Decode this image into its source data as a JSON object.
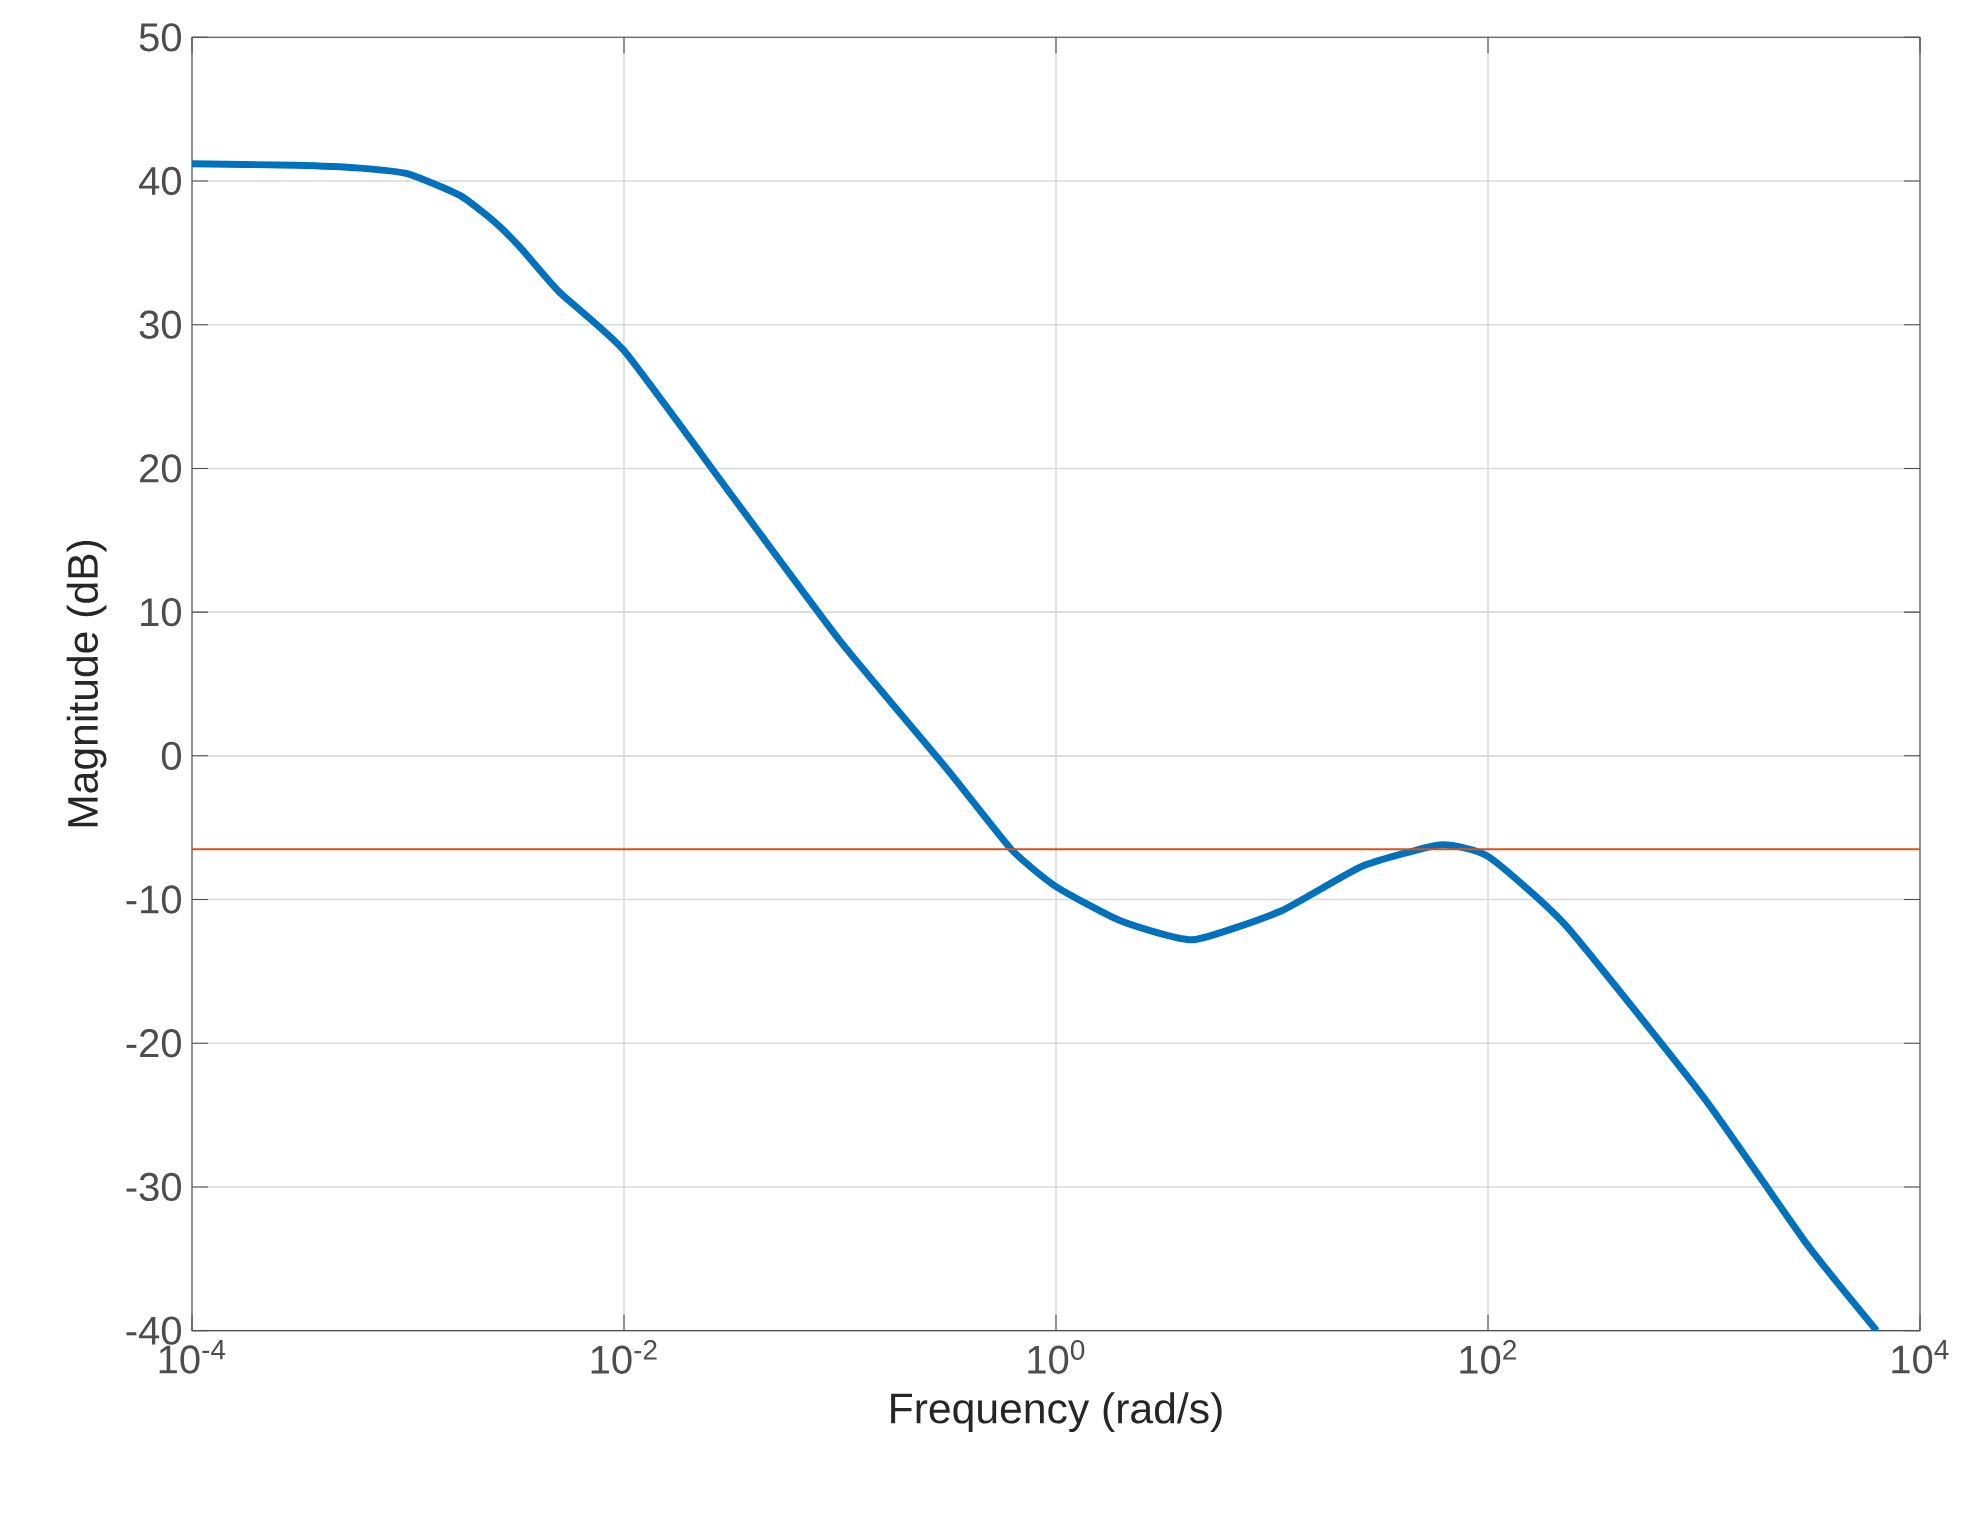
{
  "chart_data": {
    "type": "line",
    "xlabel": "Frequency (rad/s)",
    "ylabel": "Magnitude (dB)",
    "log": "x",
    "grid": true,
    "line_style": "solid",
    "marker": "none",
    "xlim": [
      0.0001,
      10000
    ],
    "ylim": [
      -40,
      50
    ],
    "xticks": [
      {
        "value": 0.0001,
        "label": "10$^{-4}$"
      },
      {
        "value": 0.01,
        "label": "10$^{-2}$"
      },
      {
        "value": 1,
        "label": "10$^{0}$"
      },
      {
        "value": 100,
        "label": "10$^{2}$"
      },
      {
        "value": 10000,
        "label": "10$^{4}$"
      }
    ],
    "yticks": [
      -40,
      -30,
      -20,
      -10,
      0,
      10,
      20,
      30,
      40,
      50
    ],
    "series": [
      {
        "color": "#0072bd",
        "x": [
          0.0001,
          0.0003,
          0.0006,
          0.001,
          0.00174,
          0.0025,
          0.0033,
          0.005,
          0.01,
          0.0316,
          0.1,
          0.316,
          0.62,
          1,
          2,
          4.3,
          11,
          26,
          60,
          100,
          229,
          1000,
          3000,
          6300
        ],
        "values": [
          41.2,
          41.1,
          40.9,
          40.5,
          39.0,
          37.2,
          35.4,
          32.3,
          28.2,
          18.1,
          8.0,
          -1.0,
          -6.5,
          -9.1,
          -11.5,
          -12.8,
          -10.8,
          -7.7,
          -6.2,
          -7.0,
          -11.8,
          -23.8,
          -34.0,
          -40
        ]
      }
    ],
    "ref_lines": [
      {
        "axis": "y",
        "value": -6.5,
        "color": "#d95319"
      }
    ]
  }
}
